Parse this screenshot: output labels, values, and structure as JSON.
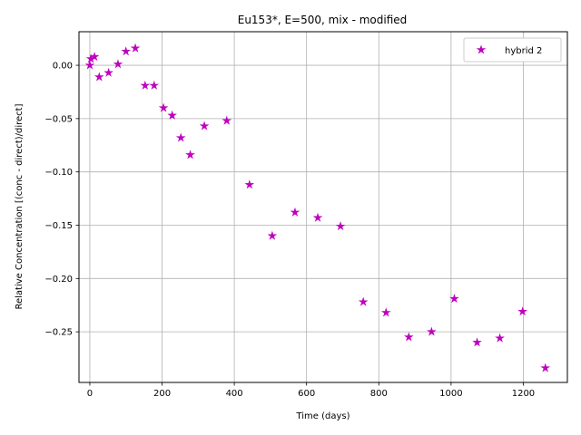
{
  "chart_data": {
    "type": "scatter",
    "title": "Eu153*, E=500, mix - modified",
    "xlabel": "Time (days)",
    "ylabel": "Relative Concentration [(conc - direct)/direct]",
    "xlim": [
      -30,
      1322
    ],
    "ylim": [
      -0.2975,
      0.0315
    ],
    "xticks": [
      0,
      200,
      400,
      600,
      800,
      1000,
      1200
    ],
    "xtick_labels": [
      "0",
      "200",
      "400",
      "600",
      "800",
      "1000",
      "1200"
    ],
    "yticks": [
      0.0,
      -0.05,
      -0.1,
      -0.15,
      -0.2,
      -0.25
    ],
    "ytick_labels": [
      "0.00",
      "−0.05",
      "−0.10",
      "−0.15",
      "−0.20",
      "−0.25"
    ],
    "grid": true,
    "legend_position": "top-right",
    "series": [
      {
        "name": "hybrid 2",
        "color": "#bf00bf",
        "marker": "star",
        "x": [
          0,
          3,
          13,
          26,
          52,
          78,
          100,
          126,
          153,
          178,
          204,
          228,
          252,
          278,
          317,
          379,
          442,
          505,
          568,
          631,
          694,
          757,
          820,
          883,
          946,
          1009,
          1072,
          1135,
          1198,
          1261
        ],
        "y": [
          0.0,
          0.006,
          0.008,
          -0.011,
          -0.007,
          0.001,
          0.013,
          0.016,
          -0.019,
          -0.019,
          -0.04,
          -0.047,
          -0.068,
          -0.084,
          -0.057,
          -0.052,
          -0.112,
          -0.16,
          -0.138,
          -0.143,
          -0.151,
          -0.222,
          -0.232,
          -0.255,
          -0.25,
          -0.219,
          -0.26,
          -0.256,
          -0.231,
          -0.284
        ]
      }
    ]
  }
}
